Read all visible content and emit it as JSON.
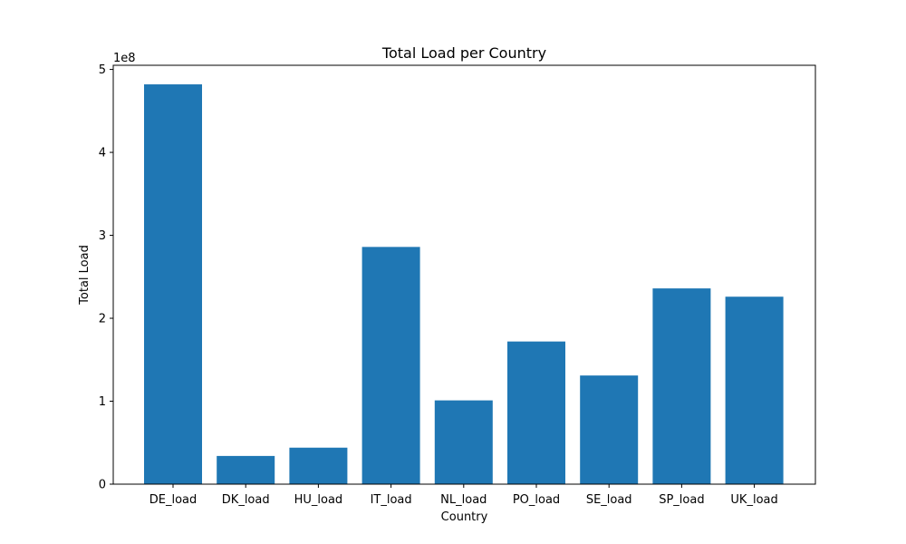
{
  "chart_data": {
    "type": "bar",
    "title": "Total Load per Country",
    "xlabel": "Country",
    "ylabel": "Total Load",
    "y_offset_label": "1e8",
    "categories": [
      "DE_load",
      "DK_load",
      "HU_load",
      "IT_load",
      "NL_load",
      "PO_load",
      "SE_load",
      "SP_load",
      "UK_load"
    ],
    "values": [
      482000000,
      34000000,
      44000000,
      286000000,
      101000000,
      172000000,
      131000000,
      236000000,
      226000000
    ],
    "ylim": [
      0,
      505000000
    ],
    "yticks": [
      0,
      100000000,
      200000000,
      300000000,
      400000000,
      500000000
    ],
    "ytick_labels": [
      "0",
      "1",
      "2",
      "3",
      "4",
      "5"
    ],
    "bar_color": "#1f77b4",
    "grid": false,
    "legend": false
  }
}
